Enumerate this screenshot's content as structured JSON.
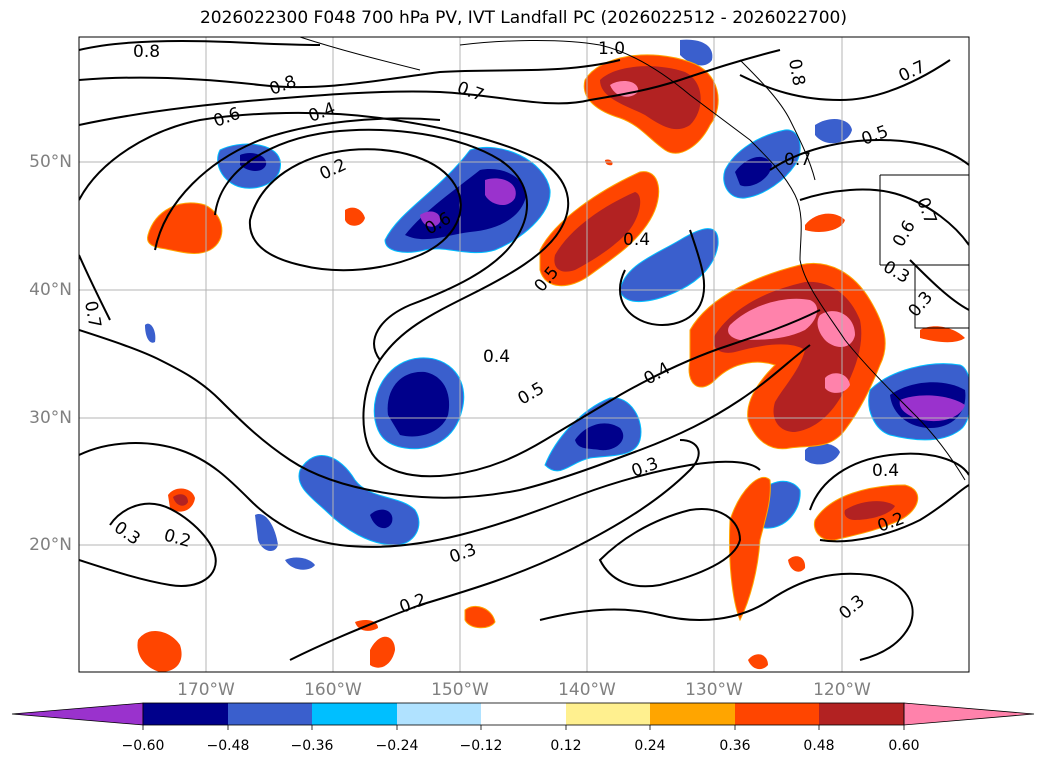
{
  "title": "2026022300 F048 700 hPa PV, IVT Landfall PC (2026022512 - 2026022700)",
  "lat_labels": [
    "50°N",
    "40°N",
    "30°N",
    "20°N"
  ],
  "lon_labels": [
    "170°W",
    "160°W",
    "150°W",
    "140°W",
    "130°W",
    "120°W"
  ],
  "contour_labels": [
    "0.8",
    "0.8",
    "0.6",
    "0.4",
    "0.2",
    "0.7",
    "1.0",
    "0.8",
    "0.7",
    "0.5",
    "0.7",
    "0.7",
    "0.4",
    "0.5",
    "0.4",
    "0.5",
    "0.4",
    "0.3",
    "0.3",
    "0.2",
    "0.2",
    "0.3",
    "0.2",
    "0.3",
    "0.4",
    "0.6",
    "0.3",
    "0.3",
    "0.7",
    "0.6"
  ],
  "colorbar": {
    "ticks": [
      "−0.60",
      "−0.48",
      "−0.36",
      "−0.24",
      "−0.12",
      "0.12",
      "0.24",
      "0.36",
      "0.48",
      "0.60"
    ],
    "colors": [
      "#9a32cd",
      "#00008b",
      "#3a5fcd",
      "#00bfff",
      "#b0e2ff",
      "#ffffff",
      "#fff08f",
      "#ffa500",
      "#ff4500",
      "#b22222",
      "#ff82ab",
      "#ff82ab"
    ]
  },
  "colors": {
    "neg_strong": "#9a32cd",
    "neg_dark": "#00008b",
    "neg_mid": "#3a5fcd",
    "neg_light": "#00bfff",
    "pos_orange": "#ff4500",
    "pos_red": "#b22222",
    "pos_pink": "#ff82ab"
  }
}
